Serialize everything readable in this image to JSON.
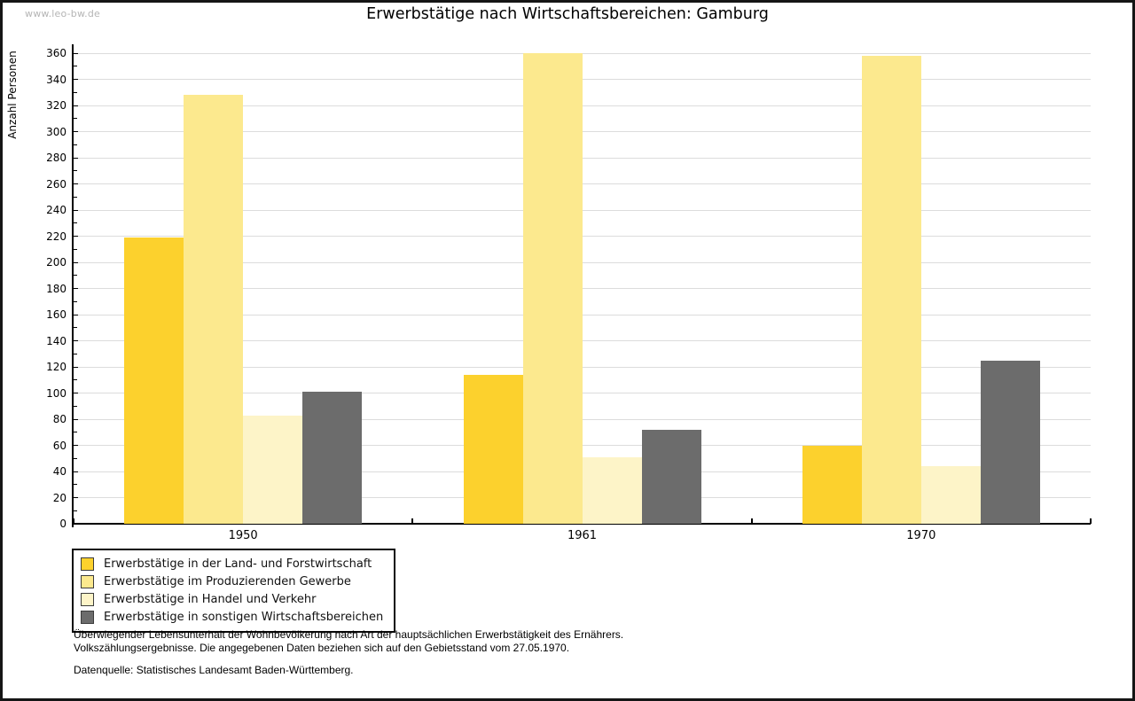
{
  "watermark": "www.leo-bw.de",
  "chart_data": {
    "type": "bar",
    "title": "Erwerbstätige nach Wirtschaftsbereichen: Gamburg",
    "ylabel": "Anzahl Personen",
    "xlabel": "",
    "categories": [
      "1950",
      "1961",
      "1970"
    ],
    "series": [
      {
        "name": "Erwerbstätige in der Land- und Forstwirtschaft",
        "color": "#fcd12d",
        "values": [
          219,
          114,
          60
        ]
      },
      {
        "name": "Erwerbstätige im Produzierenden Gewerbe",
        "color": "#fce98e",
        "values": [
          328,
          360,
          358
        ]
      },
      {
        "name": "Erwerbstätige in Handel und Verkehr",
        "color": "#fdf4c8",
        "values": [
          83,
          51,
          44
        ]
      },
      {
        "name": "Erwerbstätige in sonstigen Wirtschaftsbereichen",
        "color": "#6c6c6c",
        "values": [
          101,
          72,
          125
        ]
      }
    ],
    "ylim": [
      0,
      360
    ],
    "ytick_step": 20,
    "minor_tick_step": 10,
    "grid": true,
    "legend_position": "bottom-left"
  },
  "footnotes": {
    "line1": "Überwiegender Lebensunterhalt der Wohnbevölkerung nach Art der hauptsächlichen Erwerbstätigkeit des Ernährers.",
    "line2": "Volkszählungsergebnisse. Die angegebenen Daten beziehen sich auf den Gebietsstand vom 27.05.1970.",
    "source": "Datenquelle: Statistisches Landesamt Baden-Württemberg."
  }
}
